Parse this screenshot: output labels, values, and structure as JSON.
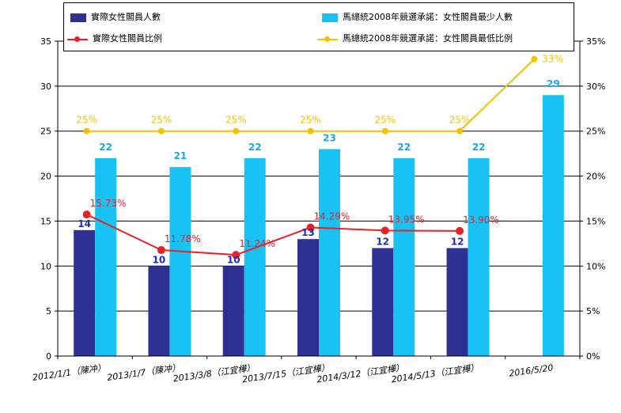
{
  "colors": {
    "actual_bar": "#2e3192",
    "promise_bar": "#18c3f4",
    "actual_line": "#e8202a",
    "promise_line": "#f2c200",
    "actual_bar_label": "#1b2fb5",
    "promise_bar_label": "#1aa9e6"
  },
  "legend": {
    "actual_count": "實際女性閣員人數",
    "promise_count": "馬總統2008年競選承諾：女性閣員最少人數",
    "actual_ratio": "實際女性閣員比例",
    "promise_ratio": "馬總統2008年競選承諾：女性閣員最低比例"
  },
  "chart_data": {
    "type": "bar",
    "categories": [
      "2012/1/1（陳冲）",
      "2013/1/7（陳冲）",
      "2013/3/8（江宜樺）",
      "2013/7/15（江宜樺）",
      "2014/3/12（江宜樺）",
      "2014/5/13（江宜樺）",
      "2016/5/20"
    ],
    "series": [
      {
        "name": "實際女性閣員人數",
        "type": "bar",
        "axis": "left",
        "values": [
          14,
          10,
          10,
          13,
          12,
          12,
          null
        ],
        "labels": [
          "14",
          "10",
          "10",
          "13",
          "12",
          "12",
          ""
        ]
      },
      {
        "name": "馬總統2008年競選承諾：女性閣員最少人數",
        "type": "bar",
        "axis": "left",
        "values": [
          22,
          21,
          22,
          23,
          22,
          22,
          29
        ],
        "labels": [
          "22",
          "21",
          "22",
          "23",
          "22",
          "22",
          "29"
        ]
      },
      {
        "name": "實際女性閣員比例",
        "type": "line",
        "axis": "right",
        "values": [
          15.73,
          11.78,
          11.24,
          14.29,
          13.95,
          13.9,
          null
        ],
        "labels": [
          "15.73%",
          "11.78%",
          "11.24%",
          "14.29%",
          "13.95%",
          "13.90%",
          ""
        ]
      },
      {
        "name": "馬總統2008年競選承諾：女性閣員最低比例",
        "type": "line",
        "axis": "right",
        "values": [
          25,
          25,
          25,
          25,
          25,
          25,
          33
        ],
        "labels": [
          "25%",
          "25%",
          "25%",
          "25%",
          "25%",
          "25%",
          "33%"
        ]
      }
    ],
    "y_left": {
      "min": 0,
      "max": 35,
      "ticks": [
        "0",
        "5",
        "10",
        "15",
        "20",
        "25",
        "30",
        "35"
      ]
    },
    "y_right": {
      "min": 0,
      "max": 35,
      "ticks": [
        "0%",
        "5%",
        "10%",
        "15%",
        "20%",
        "25%",
        "30%",
        "35%"
      ]
    },
    "grid": true,
    "legend_position": "top"
  }
}
